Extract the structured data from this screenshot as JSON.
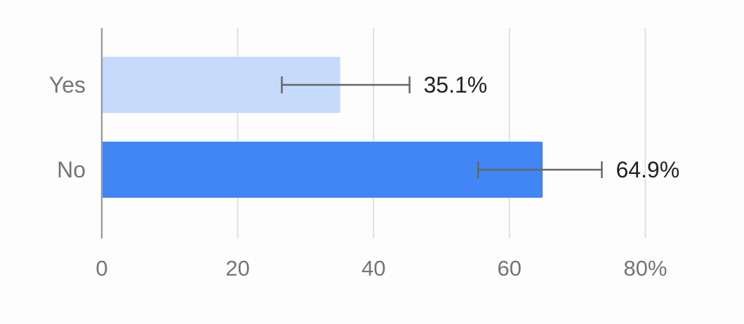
{
  "chart_data": {
    "type": "bar",
    "orientation": "horizontal",
    "categories": [
      "Yes",
      "No"
    ],
    "values": [
      35.1,
      64.9
    ],
    "value_labels": [
      "35.1%",
      "64.9%"
    ],
    "error_bars": [
      {
        "low": 26.5,
        "high": 45.3
      },
      {
        "low": 55.4,
        "high": 73.6
      }
    ],
    "x_ticks": [
      0,
      20,
      40,
      60,
      80
    ],
    "x_tick_labels": [
      "0",
      "20",
      "40",
      "60",
      "80%"
    ],
    "xlim": [
      0,
      80
    ],
    "title": "",
    "xlabel": "",
    "ylabel": "",
    "grid": true,
    "legend": "none",
    "colors": {
      "bars": [
        "#c6dafc",
        "#4285f4"
      ],
      "grid": "#e0e0e0",
      "axis": "#9e9e9e",
      "error_bar": "#666666",
      "tick_text": "#757575",
      "label_text": "#222222"
    }
  }
}
